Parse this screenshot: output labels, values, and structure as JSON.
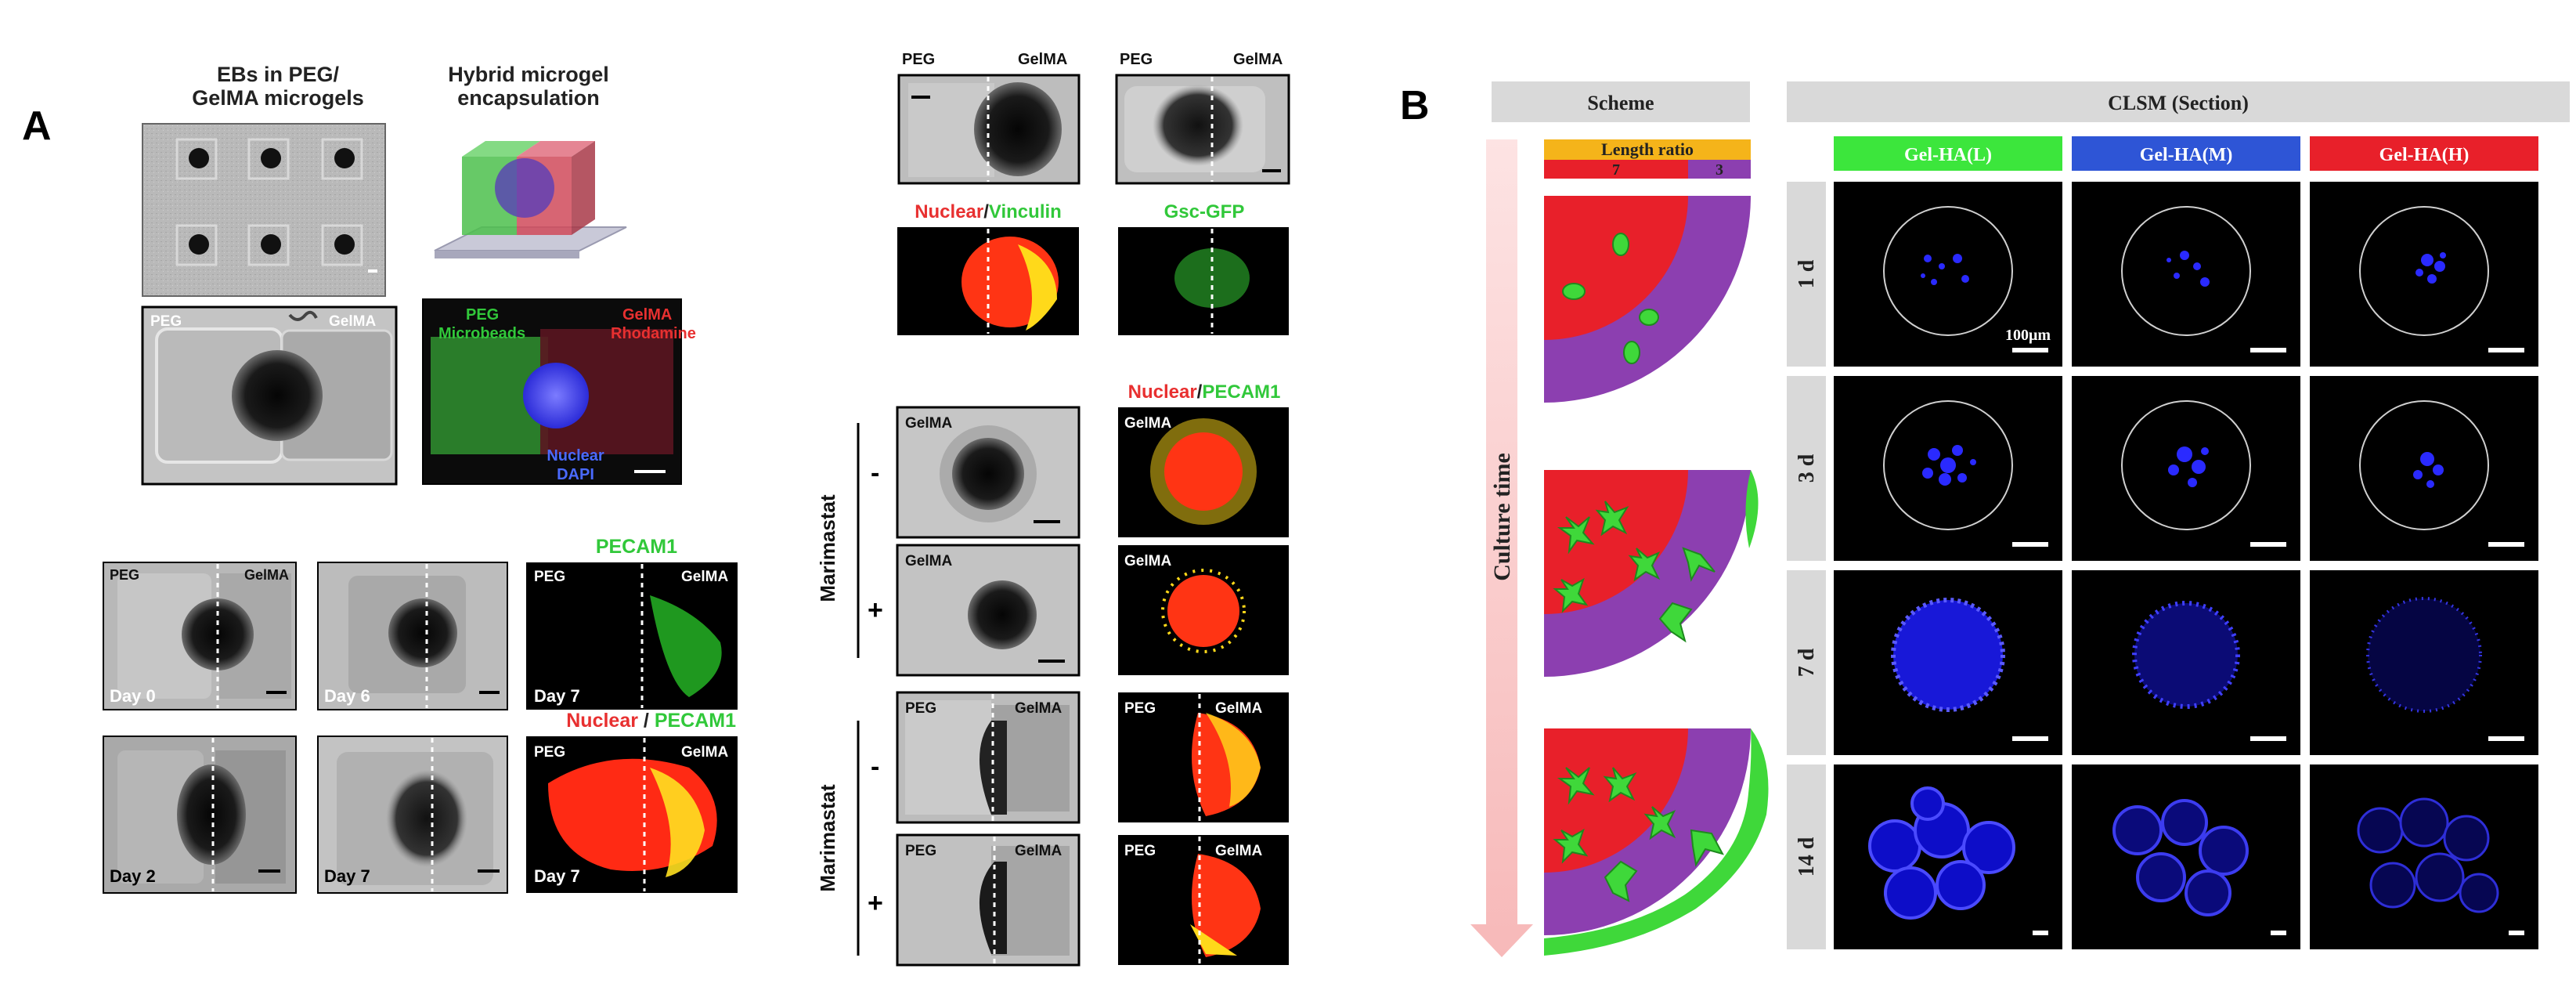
{
  "panel_a": {
    "label": "A",
    "top_left": {
      "title1": "EBs in PEG/",
      "title2": "GelMA microgels",
      "title3": "Hybrid microgel",
      "title4": "encapsulation",
      "bright_left": "PEG",
      "bright_right": "GelMA",
      "fluo_peg1": "PEG",
      "fluo_peg2": "Microbeads",
      "fluo_gel1": "GelMA",
      "fluo_gel2": "Rhodamine",
      "fluo_nuc1": "Nuclear",
      "fluo_nuc2": "DAPI"
    },
    "bottom_left": {
      "r1_peg": "PEG",
      "r1_gel": "GelMA",
      "day0": "Day 0",
      "day6": "Day 6",
      "pecam_title": "PECAM1",
      "pecam_peg": "PEG",
      "pecam_gel": "GelMA",
      "day7a": "Day 7",
      "day2": "Day 2",
      "day7b": "Day 7",
      "nuc_title": "Nuclear",
      "slash": " / ",
      "nuc_title2": "PECAM1",
      "nuc_peg": "PEG",
      "nuc_gel": "GelMA",
      "day7c": "Day 7"
    },
    "right_column": {
      "t1_peg": "PEG",
      "t1_gel": "GelMA",
      "t2_peg": "PEG",
      "t2_gel": "GelMA",
      "vinc_a": "Nuclear",
      "vinc_slash": "/",
      "vinc_b": "Vinculin",
      "gsc": "Gsc-GFP",
      "pecam_a": "Nuclear",
      "pecam_slash": "/",
      "pecam_b": "PECAM1",
      "marimastat1": "Marimastat",
      "marimastat2": "Marimastat",
      "minus": "-",
      "plus": "+",
      "gelma": "GelMA",
      "peg": "PEG"
    }
  },
  "panel_b": {
    "label": "B",
    "scheme_header": "Scheme",
    "clsm_header": "CLSM (Section)",
    "length_ratio": "Length ratio",
    "ratio_left": "7",
    "ratio_right": "3",
    "culture_time": "Culture time",
    "columns": [
      "Gel-HA(L)",
      "Gel-HA(M)",
      "Gel-HA(H)"
    ],
    "column_colors": [
      "#3ce63c",
      "#2e55d6",
      "#e8202a"
    ],
    "rows": [
      "1 d",
      "3 d",
      "7 d",
      "14 d"
    ],
    "scale": "100μm"
  },
  "colors": {
    "red": "#e8202a",
    "purple": "#8c3fb0",
    "green": "#2fd24a",
    "blue": "#1a1aff"
  }
}
